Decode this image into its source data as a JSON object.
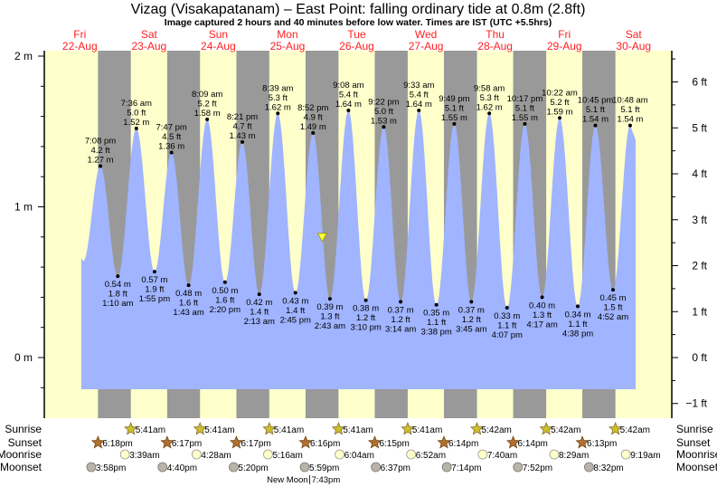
{
  "chart_data": {
    "type": "area",
    "title": "Vizag (Visakapatanam) – East Point: falling  ordinary tide at 0.8m (2.8ft)",
    "subtitle": "Image captured 2 hours and 40 minutes before low water. Times are IST (UTC +5.5hrs)",
    "current_level_m": 0.8,
    "y_left": {
      "unit": "m",
      "ticks": [
        "2 m",
        "1 m",
        "0 m"
      ],
      "range": [
        -0.2,
        2.0
      ]
    },
    "y_right": {
      "unit": "ft",
      "ticks": [
        "6 ft",
        "5 ft",
        "4 ft",
        "3 ft",
        "2 ft",
        "1 ft",
        "0 ft",
        "−1 ft"
      ]
    },
    "days": [
      {
        "dow": "Fri",
        "date": "22-Aug",
        "day": 22
      },
      {
        "dow": "Sat",
        "date": "23-Aug",
        "day": 23
      },
      {
        "dow": "Sun",
        "date": "24-Aug",
        "day": 24
      },
      {
        "dow": "Mon",
        "date": "25-Aug",
        "day": 25
      },
      {
        "dow": "Tue",
        "date": "26-Aug",
        "day": 26
      },
      {
        "dow": "Wed",
        "date": "27-Aug",
        "day": 27
      },
      {
        "dow": "Thu",
        "date": "28-Aug",
        "day": 28
      },
      {
        "dow": "Fri",
        "date": "29-Aug",
        "day": 29
      },
      {
        "dow": "Sat",
        "date": "30-Aug",
        "day": 30
      }
    ],
    "extremes": [
      {
        "type": "high",
        "day": 22,
        "time": "7:08 pm",
        "m": "1.27 m",
        "ft": "4.2 ft",
        "v": 1.27
      },
      {
        "type": "low",
        "day": 23,
        "time": "1:10 am",
        "m": "0.54 m",
        "ft": "1.8 ft",
        "v": 0.54
      },
      {
        "type": "high",
        "day": 23,
        "time": "7:36 am",
        "m": "1.52 m",
        "ft": "5.0 ft",
        "v": 1.52
      },
      {
        "type": "low",
        "day": 23,
        "time": "1:55 pm",
        "m": "0.57 m",
        "ft": "1.9 ft",
        "v": 0.57
      },
      {
        "type": "high",
        "day": 23,
        "time": "7:47 pm",
        "m": "1.36 m",
        "ft": "4.5 ft",
        "v": 1.36
      },
      {
        "type": "low",
        "day": 24,
        "time": "1:43 am",
        "m": "0.48 m",
        "ft": "1.6 ft",
        "v": 0.48
      },
      {
        "type": "high",
        "day": 24,
        "time": "8:09 am",
        "m": "1.58 m",
        "ft": "5.2 ft",
        "v": 1.58
      },
      {
        "type": "low",
        "day": 24,
        "time": "2:20 pm",
        "m": "0.50 m",
        "ft": "1.6 ft",
        "v": 0.5
      },
      {
        "type": "high",
        "day": 24,
        "time": "8:21 pm",
        "m": "1.43 m",
        "ft": "4.7 ft",
        "v": 1.43
      },
      {
        "type": "low",
        "day": 25,
        "time": "2:13 am",
        "m": "0.42 m",
        "ft": "1.4 ft",
        "v": 0.42
      },
      {
        "type": "high",
        "day": 25,
        "time": "8:39 am",
        "m": "1.62 m",
        "ft": "5.3 ft",
        "v": 1.62
      },
      {
        "type": "low",
        "day": 25,
        "time": "2:45 pm",
        "m": "0.43 m",
        "ft": "1.4 ft",
        "v": 0.43
      },
      {
        "type": "high",
        "day": 25,
        "time": "8:52 pm",
        "m": "1.49 m",
        "ft": "4.9 ft",
        "v": 1.49
      },
      {
        "type": "low",
        "day": 26,
        "time": "2:43 am",
        "m": "0.39 m",
        "ft": "1.3 ft",
        "v": 0.39
      },
      {
        "type": "high",
        "day": 26,
        "time": "9:08 am",
        "m": "1.64 m",
        "ft": "5.4 ft",
        "v": 1.64
      },
      {
        "type": "low",
        "day": 26,
        "time": "3:10 pm",
        "m": "0.38 m",
        "ft": "1.2 ft",
        "v": 0.38
      },
      {
        "type": "high",
        "day": 26,
        "time": "9:22 pm",
        "m": "1.53 m",
        "ft": "5.0 ft",
        "v": 1.53
      },
      {
        "type": "low",
        "day": 27,
        "time": "3:14 am",
        "m": "0.37 m",
        "ft": "1.2 ft",
        "v": 0.37
      },
      {
        "type": "high",
        "day": 27,
        "time": "9:33 am",
        "m": "1.64 m",
        "ft": "5.4 ft",
        "v": 1.64
      },
      {
        "type": "low",
        "day": 27,
        "time": "3:38 pm",
        "m": "0.35 m",
        "ft": "1.1 ft",
        "v": 0.35
      },
      {
        "type": "high",
        "day": 27,
        "time": "9:49 pm",
        "m": "1.55 m",
        "ft": "5.1 ft",
        "v": 1.55
      },
      {
        "type": "low",
        "day": 28,
        "time": "3:45 am",
        "m": "0.37 m",
        "ft": "1.2 ft",
        "v": 0.37
      },
      {
        "type": "high",
        "day": 28,
        "time": "9:58 am",
        "m": "1.62 m",
        "ft": "5.3 ft",
        "v": 1.62
      },
      {
        "type": "low",
        "day": 28,
        "time": "4:07 pm",
        "m": "0.33 m",
        "ft": "1.1 ft",
        "v": 0.33
      },
      {
        "type": "high",
        "day": 28,
        "time": "10:17 pm",
        "m": "1.55 m",
        "ft": "5.1 ft",
        "v": 1.55
      },
      {
        "type": "low",
        "day": 29,
        "time": "4:17 am",
        "m": "0.40 m",
        "ft": "1.3 ft",
        "v": 0.4
      },
      {
        "type": "high",
        "day": 29,
        "time": "10:22 am",
        "m": "1.59 m",
        "ft": "5.2 ft",
        "v": 1.59
      },
      {
        "type": "low",
        "day": 29,
        "time": "4:38 pm",
        "m": "0.34 m",
        "ft": "1.1 ft",
        "v": 0.34
      },
      {
        "type": "high",
        "day": 29,
        "time": "10:45 pm",
        "m": "1.54 m",
        "ft": "5.1 ft",
        "v": 1.54
      },
      {
        "type": "low",
        "day": 30,
        "time": "4:52 am",
        "m": "0.45 m",
        "ft": "1.5 ft",
        "v": 0.45
      },
      {
        "type": "high",
        "day": 30,
        "time": "10:48 am",
        "m": "1.54 m",
        "ft": "5.1 ft",
        "v": 1.54
      }
    ],
    "astro_rows": [
      {
        "label": "Sunrise",
        "icon": "sunrise-icon",
        "items": [
          {
            "day": 23,
            "time": "5:41am"
          },
          {
            "day": 24,
            "time": "5:41am"
          },
          {
            "day": 25,
            "time": "5:41am"
          },
          {
            "day": 26,
            "time": "5:41am"
          },
          {
            "day": 27,
            "time": "5:41am"
          },
          {
            "day": 28,
            "time": "5:42am"
          },
          {
            "day": 29,
            "time": "5:42am"
          },
          {
            "day": 30,
            "time": "5:42am"
          }
        ]
      },
      {
        "label": "Sunset",
        "icon": "sunset-icon",
        "items": [
          {
            "day": 22,
            "time": "6:18pm"
          },
          {
            "day": 23,
            "time": "6:17pm"
          },
          {
            "day": 24,
            "time": "6:17pm"
          },
          {
            "day": 25,
            "time": "6:16pm"
          },
          {
            "day": 26,
            "time": "6:15pm"
          },
          {
            "day": 27,
            "time": "6:14pm"
          },
          {
            "day": 28,
            "time": "6:14pm"
          },
          {
            "day": 29,
            "time": "6:13pm"
          }
        ]
      },
      {
        "label": "Moonrise",
        "icon": "moonrise-icon",
        "items": [
          {
            "day": 23,
            "time": "3:39am"
          },
          {
            "day": 24,
            "time": "4:28am"
          },
          {
            "day": 25,
            "time": "5:16am"
          },
          {
            "day": 26,
            "time": "6:04am"
          },
          {
            "day": 27,
            "time": "6:52am"
          },
          {
            "day": 28,
            "time": "7:40am"
          },
          {
            "day": 29,
            "time": "8:29am"
          },
          {
            "day": 30,
            "time": "9:19am"
          }
        ]
      },
      {
        "label": "Moonset",
        "icon": "moonset-icon",
        "items": [
          {
            "day": 22,
            "time": "3:58pm"
          },
          {
            "day": 23,
            "time": "4:40pm"
          },
          {
            "day": 24,
            "time": "5:20pm"
          },
          {
            "day": 25,
            "time": "5:59pm"
          },
          {
            "day": 26,
            "time": "6:37pm"
          },
          {
            "day": 27,
            "time": "7:14pm"
          },
          {
            "day": 28,
            "time": "7:52pm"
          },
          {
            "day": 29,
            "time": "8:32pm"
          }
        ]
      }
    ],
    "moon_phase": {
      "label": "New Moon",
      "day": 25,
      "time": "7:43pm"
    },
    "colors": {
      "day": "#ffffcc",
      "night": "#999999",
      "water": "#a0b4ff",
      "date_label": "#ff2020",
      "marker": "#ffff33"
    }
  }
}
